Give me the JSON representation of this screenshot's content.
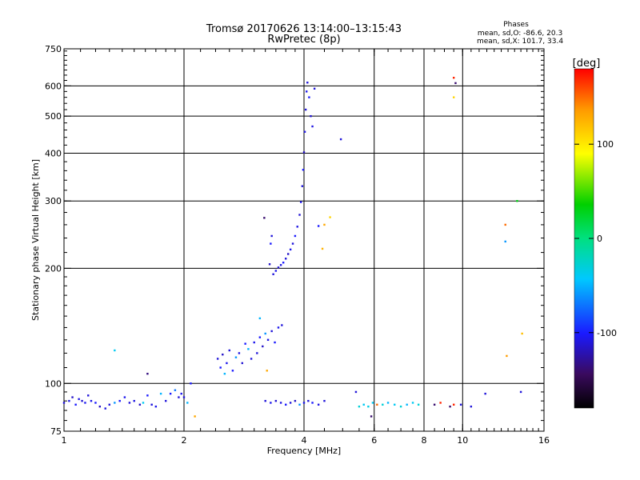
{
  "chart_data": {
    "type": "scatter",
    "title": "Tromsø 20170626 13:14:00–13:15:43",
    "subtitle": "RwPretec (8p)",
    "xlabel": "Frequency [MHz]",
    "ylabel": "Stationary phase Virtual Height [km]",
    "x_scale": "log",
    "y_scale": "log",
    "xlim": [
      1,
      16
    ],
    "ylim": [
      75,
      750
    ],
    "x_ticks": [
      1,
      2,
      4,
      6,
      8,
      10,
      16
    ],
    "x_tick_labels": [
      "1",
      "2",
      "4",
      "6",
      "8",
      "10",
      "16"
    ],
    "y_ticks": [
      75,
      100,
      200,
      300,
      400,
      500,
      600,
      750
    ],
    "y_tick_labels": [
      "75",
      "100",
      "200",
      "300",
      "400",
      "500",
      "600",
      "750"
    ],
    "grid": true,
    "stats": {
      "title": "Phases",
      "line_o": "mean, sd,O: -86.6, 20.3",
      "line_x": "mean, sd,X: 101.7, 33.4"
    },
    "colorbar": {
      "label": "[deg]",
      "vmin": -180,
      "vmax": 180,
      "ticks": [
        100,
        0,
        -100
      ],
      "tick_labels": [
        "100",
        "0",
        "-100"
      ]
    },
    "points": [
      {
        "x": 1.0,
        "y": 89,
        "c": -110
      },
      {
        "x": 1.03,
        "y": 90,
        "c": -105
      },
      {
        "x": 1.05,
        "y": 92,
        "c": -115
      },
      {
        "x": 1.07,
        "y": 88,
        "c": -100
      },
      {
        "x": 1.09,
        "y": 91,
        "c": -108
      },
      {
        "x": 1.11,
        "y": 90,
        "c": -112
      },
      {
        "x": 1.13,
        "y": 89,
        "c": -104
      },
      {
        "x": 1.15,
        "y": 93,
        "c": -110
      },
      {
        "x": 1.17,
        "y": 90,
        "c": -106
      },
      {
        "x": 1.2,
        "y": 89,
        "c": -100
      },
      {
        "x": 1.23,
        "y": 87,
        "c": -115
      },
      {
        "x": 1.27,
        "y": 86,
        "c": -108
      },
      {
        "x": 1.3,
        "y": 88,
        "c": -110
      },
      {
        "x": 1.34,
        "y": 89,
        "c": -60
      },
      {
        "x": 1.38,
        "y": 90,
        "c": -100
      },
      {
        "x": 1.42,
        "y": 92,
        "c": -105
      },
      {
        "x": 1.46,
        "y": 89,
        "c": -110
      },
      {
        "x": 1.5,
        "y": 90,
        "c": -108
      },
      {
        "x": 1.55,
        "y": 88,
        "c": -115
      },
      {
        "x": 1.58,
        "y": 89,
        "c": -40
      },
      {
        "x": 1.62,
        "y": 93,
        "c": -100
      },
      {
        "x": 1.66,
        "y": 88,
        "c": -110
      },
      {
        "x": 1.7,
        "y": 87,
        "c": -105
      },
      {
        "x": 1.75,
        "y": 94,
        "c": -50
      },
      {
        "x": 1.8,
        "y": 90,
        "c": -110
      },
      {
        "x": 1.85,
        "y": 94,
        "c": -100
      },
      {
        "x": 1.9,
        "y": 96,
        "c": -70
      },
      {
        "x": 1.94,
        "y": 92,
        "c": -110
      },
      {
        "x": 1.97,
        "y": 94,
        "c": -105
      },
      {
        "x": 2.0,
        "y": 92,
        "c": -110
      },
      {
        "x": 2.04,
        "y": 89,
        "c": -50
      },
      {
        "x": 2.08,
        "y": 100,
        "c": -100
      },
      {
        "x": 1.34,
        "y": 122,
        "c": -40
      },
      {
        "x": 1.62,
        "y": 106,
        "c": -135
      },
      {
        "x": 2.13,
        "y": 82,
        "c": 130
      },
      {
        "x": 2.43,
        "y": 116,
        "c": -110
      },
      {
        "x": 2.47,
        "y": 110,
        "c": -100
      },
      {
        "x": 2.5,
        "y": 119,
        "c": -115
      },
      {
        "x": 2.53,
        "y": 106,
        "c": -50
      },
      {
        "x": 2.56,
        "y": 113,
        "c": -105
      },
      {
        "x": 2.6,
        "y": 122,
        "c": -110
      },
      {
        "x": 2.65,
        "y": 108,
        "c": -100
      },
      {
        "x": 2.7,
        "y": 117,
        "c": -60
      },
      {
        "x": 2.75,
        "y": 120,
        "c": -108
      },
      {
        "x": 2.8,
        "y": 113,
        "c": -112
      },
      {
        "x": 2.85,
        "y": 127,
        "c": -100
      },
      {
        "x": 2.9,
        "y": 123,
        "c": -50
      },
      {
        "x": 2.95,
        "y": 116,
        "c": -110
      },
      {
        "x": 3.0,
        "y": 128,
        "c": -105
      },
      {
        "x": 3.05,
        "y": 120,
        "c": -110
      },
      {
        "x": 3.1,
        "y": 132,
        "c": -100
      },
      {
        "x": 3.15,
        "y": 125,
        "c": -115
      },
      {
        "x": 3.2,
        "y": 135,
        "c": -60
      },
      {
        "x": 3.25,
        "y": 130,
        "c": -108
      },
      {
        "x": 3.32,
        "y": 137,
        "c": -110
      },
      {
        "x": 3.38,
        "y": 128,
        "c": -100
      },
      {
        "x": 3.45,
        "y": 140,
        "c": -105
      },
      {
        "x": 3.52,
        "y": 142,
        "c": -110
      },
      {
        "x": 3.1,
        "y": 148,
        "c": -50
      },
      {
        "x": 3.18,
        "y": 271,
        "c": -140
      },
      {
        "x": 3.23,
        "y": 108,
        "c": 130
      },
      {
        "x": 3.2,
        "y": 90,
        "c": -110
      },
      {
        "x": 3.3,
        "y": 89,
        "c": -105
      },
      {
        "x": 3.4,
        "y": 90,
        "c": -112
      },
      {
        "x": 3.5,
        "y": 89,
        "c": -108
      },
      {
        "x": 3.6,
        "y": 88,
        "c": -100
      },
      {
        "x": 3.7,
        "y": 89,
        "c": -110
      },
      {
        "x": 3.8,
        "y": 90,
        "c": -115
      },
      {
        "x": 3.9,
        "y": 88,
        "c": -60
      },
      {
        "x": 4.0,
        "y": 89,
        "c": -105
      },
      {
        "x": 4.1,
        "y": 90,
        "c": -110
      },
      {
        "x": 4.2,
        "y": 89,
        "c": -100
      },
      {
        "x": 4.35,
        "y": 88,
        "c": -108
      },
      {
        "x": 4.5,
        "y": 90,
        "c": -110
      },
      {
        "x": 3.35,
        "y": 193,
        "c": -110
      },
      {
        "x": 3.4,
        "y": 197,
        "c": -105
      },
      {
        "x": 3.45,
        "y": 201,
        "c": -112
      },
      {
        "x": 3.5,
        "y": 204,
        "c": -108
      },
      {
        "x": 3.55,
        "y": 207,
        "c": -100
      },
      {
        "x": 3.6,
        "y": 212,
        "c": -110
      },
      {
        "x": 3.65,
        "y": 218,
        "c": -115
      },
      {
        "x": 3.7,
        "y": 224,
        "c": -105
      },
      {
        "x": 3.75,
        "y": 232,
        "c": -110
      },
      {
        "x": 3.8,
        "y": 243,
        "c": -100
      },
      {
        "x": 3.85,
        "y": 257,
        "c": -108
      },
      {
        "x": 3.9,
        "y": 276,
        "c": -112
      },
      {
        "x": 3.93,
        "y": 298,
        "c": -105
      },
      {
        "x": 3.96,
        "y": 328,
        "c": -110
      },
      {
        "x": 3.98,
        "y": 362,
        "c": -100
      },
      {
        "x": 4.0,
        "y": 402,
        "c": -115
      },
      {
        "x": 4.02,
        "y": 455,
        "c": -108
      },
      {
        "x": 4.04,
        "y": 520,
        "c": -110
      },
      {
        "x": 4.06,
        "y": 580,
        "c": -105
      },
      {
        "x": 4.08,
        "y": 612,
        "c": -110
      },
      {
        "x": 4.12,
        "y": 560,
        "c": -100
      },
      {
        "x": 4.16,
        "y": 500,
        "c": -112
      },
      {
        "x": 4.2,
        "y": 470,
        "c": -108
      },
      {
        "x": 4.25,
        "y": 590,
        "c": -110
      },
      {
        "x": 3.28,
        "y": 205,
        "c": -115
      },
      {
        "x": 3.3,
        "y": 232,
        "c": -100
      },
      {
        "x": 3.32,
        "y": 243,
        "c": -110
      },
      {
        "x": 4.35,
        "y": 258,
        "c": -100
      },
      {
        "x": 4.45,
        "y": 225,
        "c": 125
      },
      {
        "x": 4.5,
        "y": 260,
        "c": 130
      },
      {
        "x": 4.65,
        "y": 272,
        "c": 110
      },
      {
        "x": 4.95,
        "y": 435,
        "c": -110
      },
      {
        "x": 5.5,
        "y": 87,
        "c": -30
      },
      {
        "x": 5.65,
        "y": 88,
        "c": -40
      },
      {
        "x": 5.8,
        "y": 87,
        "c": -35
      },
      {
        "x": 5.95,
        "y": 89,
        "c": -40
      },
      {
        "x": 6.1,
        "y": 88,
        "c": 150
      },
      {
        "x": 6.3,
        "y": 88,
        "c": -30
      },
      {
        "x": 6.5,
        "y": 89,
        "c": -50
      },
      {
        "x": 6.75,
        "y": 88,
        "c": -40
      },
      {
        "x": 7.0,
        "y": 87,
        "c": -30
      },
      {
        "x": 7.25,
        "y": 88,
        "c": -50
      },
      {
        "x": 7.5,
        "y": 89,
        "c": -40
      },
      {
        "x": 7.75,
        "y": 88,
        "c": -30
      },
      {
        "x": 5.4,
        "y": 95,
        "c": -110
      },
      {
        "x": 5.9,
        "y": 82,
        "c": -140
      },
      {
        "x": 8.5,
        "y": 88,
        "c": -140
      },
      {
        "x": 8.8,
        "y": 89,
        "c": 170
      },
      {
        "x": 9.3,
        "y": 87,
        "c": -140
      },
      {
        "x": 9.5,
        "y": 88,
        "c": 170
      },
      {
        "x": 9.9,
        "y": 88,
        "c": -110
      },
      {
        "x": 10.5,
        "y": 87,
        "c": -110
      },
      {
        "x": 11.4,
        "y": 94,
        "c": -110
      },
      {
        "x": 14.0,
        "y": 95,
        "c": -110
      },
      {
        "x": 9.5,
        "y": 630,
        "c": 170
      },
      {
        "x": 9.5,
        "y": 560,
        "c": 110
      },
      {
        "x": 9.6,
        "y": 610,
        "c": -140
      },
      {
        "x": 12.8,
        "y": 260,
        "c": 150
      },
      {
        "x": 12.8,
        "y": 235,
        "c": -60
      },
      {
        "x": 13.7,
        "y": 300,
        "c": 30
      },
      {
        "x": 14.1,
        "y": 135,
        "c": 120
      },
      {
        "x": 12.9,
        "y": 118,
        "c": 135
      }
    ]
  }
}
